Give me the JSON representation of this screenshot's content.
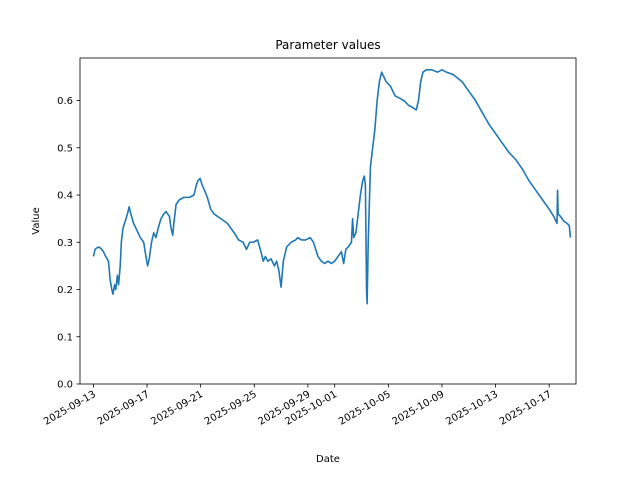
{
  "chart_data": {
    "type": "line",
    "title": "Parameter values",
    "xlabel": "Date",
    "ylabel": "Value",
    "x_axis_type": "date",
    "xlim": [
      "2025-09-12T00:00",
      "2025-10-19T00:00"
    ],
    "ylim": [
      0,
      0.69
    ],
    "grid": false,
    "legend": "none",
    "x_ticks": [
      "2025-09-13",
      "2025-09-17",
      "2025-09-21",
      "2025-09-25",
      "2025-09-29",
      "2025-10-01",
      "2025-10-05",
      "2025-10-09",
      "2025-10-13",
      "2025-10-17"
    ],
    "y_ticks": [
      "0.0",
      "0.1",
      "0.2",
      "0.3",
      "0.4",
      "0.5",
      "0.6"
    ],
    "series": [
      {
        "color": "#1f77b4",
        "points": [
          [
            "2025-09-13T00:00",
            0.27
          ],
          [
            "2025-09-13T03:00",
            0.285
          ],
          [
            "2025-09-13T06:00",
            0.288
          ],
          [
            "2025-09-13T10:00",
            0.29
          ],
          [
            "2025-09-13T14:00",
            0.286
          ],
          [
            "2025-09-13T18:00",
            0.28
          ],
          [
            "2025-09-13T22:00",
            0.27
          ],
          [
            "2025-09-14T03:00",
            0.26
          ],
          [
            "2025-09-14T06:00",
            0.22
          ],
          [
            "2025-09-14T09:00",
            0.2
          ],
          [
            "2025-09-14T11:00",
            0.19
          ],
          [
            "2025-09-14T14:00",
            0.21
          ],
          [
            "2025-09-14T16:00",
            0.2
          ],
          [
            "2025-09-14T19:00",
            0.23
          ],
          [
            "2025-09-14T21:00",
            0.21
          ],
          [
            "2025-09-15T00:00",
            0.25
          ],
          [
            "2025-09-15T02:00",
            0.3
          ],
          [
            "2025-09-15T05:00",
            0.33
          ],
          [
            "2025-09-15T09:00",
            0.345
          ],
          [
            "2025-09-15T13:00",
            0.36
          ],
          [
            "2025-09-15T16:00",
            0.375
          ],
          [
            "2025-09-15T19:00",
            0.36
          ],
          [
            "2025-09-16T00:00",
            0.34
          ],
          [
            "2025-09-16T06:00",
            0.325
          ],
          [
            "2025-09-16T12:00",
            0.31
          ],
          [
            "2025-09-16T18:00",
            0.3
          ],
          [
            "2025-09-16T22:00",
            0.27
          ],
          [
            "2025-09-17T01:00",
            0.25
          ],
          [
            "2025-09-17T04:00",
            0.265
          ],
          [
            "2025-09-17T08:00",
            0.3
          ],
          [
            "2025-09-17T12:00",
            0.32
          ],
          [
            "2025-09-17T16:00",
            0.31
          ],
          [
            "2025-09-17T20:00",
            0.33
          ],
          [
            "2025-09-18T01:00",
            0.35
          ],
          [
            "2025-09-18T06:00",
            0.36
          ],
          [
            "2025-09-18T10:00",
            0.365
          ],
          [
            "2025-09-18T16:00",
            0.355
          ],
          [
            "2025-09-18T19:00",
            0.33
          ],
          [
            "2025-09-18T22:00",
            0.315
          ],
          [
            "2025-09-19T00:00",
            0.34
          ],
          [
            "2025-09-19T04:00",
            0.38
          ],
          [
            "2025-09-19T10:00",
            0.39
          ],
          [
            "2025-09-19T18:00",
            0.395
          ],
          [
            "2025-09-20T04:00",
            0.395
          ],
          [
            "2025-09-20T12:00",
            0.4
          ],
          [
            "2025-09-20T16:00",
            0.42
          ],
          [
            "2025-09-20T19:00",
            0.43
          ],
          [
            "2025-09-20T23:00",
            0.435
          ],
          [
            "2025-09-21T03:00",
            0.42
          ],
          [
            "2025-09-21T07:00",
            0.41
          ],
          [
            "2025-09-21T12:00",
            0.395
          ],
          [
            "2025-09-21T18:00",
            0.37
          ],
          [
            "2025-09-22T00:00",
            0.36
          ],
          [
            "2025-09-22T12:00",
            0.35
          ],
          [
            "2025-09-23T00:00",
            0.34
          ],
          [
            "2025-09-23T12:00",
            0.32
          ],
          [
            "2025-09-23T20:00",
            0.305
          ],
          [
            "2025-09-24T04:00",
            0.3
          ],
          [
            "2025-09-24T10:00",
            0.285
          ],
          [
            "2025-09-24T16:00",
            0.3
          ],
          [
            "2025-09-24T22:00",
            0.3
          ],
          [
            "2025-09-25T06:00",
            0.305
          ],
          [
            "2025-09-25T12:00",
            0.28
          ],
          [
            "2025-09-25T16:00",
            0.26
          ],
          [
            "2025-09-25T20:00",
            0.27
          ],
          [
            "2025-09-26T00:00",
            0.26
          ],
          [
            "2025-09-26T06:00",
            0.265
          ],
          [
            "2025-09-26T12:00",
            0.25
          ],
          [
            "2025-09-26T16:00",
            0.26
          ],
          [
            "2025-09-26T20:00",
            0.24
          ],
          [
            "2025-09-27T00:00",
            0.205
          ],
          [
            "2025-09-27T04:00",
            0.26
          ],
          [
            "2025-09-27T10:00",
            0.29
          ],
          [
            "2025-09-27T18:00",
            0.3
          ],
          [
            "2025-09-28T02:00",
            0.305
          ],
          [
            "2025-09-28T06:00",
            0.31
          ],
          [
            "2025-09-28T12:00",
            0.305
          ],
          [
            "2025-09-28T20:00",
            0.305
          ],
          [
            "2025-09-29T04:00",
            0.31
          ],
          [
            "2025-09-29T10:00",
            0.3
          ],
          [
            "2025-09-29T14:00",
            0.285
          ],
          [
            "2025-09-29T18:00",
            0.27
          ],
          [
            "2025-09-30T00:00",
            0.26
          ],
          [
            "2025-09-30T06:00",
            0.255
          ],
          [
            "2025-09-30T12:00",
            0.26
          ],
          [
            "2025-09-30T18:00",
            0.255
          ],
          [
            "2025-10-01T00:00",
            0.26
          ],
          [
            "2025-10-01T06:00",
            0.27
          ],
          [
            "2025-10-01T12:00",
            0.28
          ],
          [
            "2025-10-01T16:00",
            0.255
          ],
          [
            "2025-10-01T20:00",
            0.285
          ],
          [
            "2025-10-02T00:00",
            0.29
          ],
          [
            "2025-10-02T06:00",
            0.3
          ],
          [
            "2025-10-02T08:00",
            0.35
          ],
          [
            "2025-10-02T10:00",
            0.31
          ],
          [
            "2025-10-02T14:00",
            0.32
          ],
          [
            "2025-10-02T18:00",
            0.36
          ],
          [
            "2025-10-02T22:00",
            0.4
          ],
          [
            "2025-10-03T02:00",
            0.43
          ],
          [
            "2025-10-03T05:00",
            0.44
          ],
          [
            "2025-10-03T07:00",
            0.42
          ],
          [
            "2025-10-03T09:00",
            0.2
          ],
          [
            "2025-10-03T10:00",
            0.17
          ],
          [
            "2025-10-03T12:00",
            0.3
          ],
          [
            "2025-10-03T16:00",
            0.46
          ],
          [
            "2025-10-03T20:00",
            0.5
          ],
          [
            "2025-10-04T00:00",
            0.54
          ],
          [
            "2025-10-04T04:00",
            0.6
          ],
          [
            "2025-10-04T08:00",
            0.64
          ],
          [
            "2025-10-04T12:00",
            0.66
          ],
          [
            "2025-10-04T16:00",
            0.65
          ],
          [
            "2025-10-04T20:00",
            0.64
          ],
          [
            "2025-10-05T04:00",
            0.63
          ],
          [
            "2025-10-05T12:00",
            0.61
          ],
          [
            "2025-10-05T20:00",
            0.605
          ],
          [
            "2025-10-06T04:00",
            0.6
          ],
          [
            "2025-10-06T12:00",
            0.59
          ],
          [
            "2025-10-06T20:00",
            0.585
          ],
          [
            "2025-10-07T02:00",
            0.58
          ],
          [
            "2025-10-07T06:00",
            0.6
          ],
          [
            "2025-10-07T10:00",
            0.64
          ],
          [
            "2025-10-07T14:00",
            0.66
          ],
          [
            "2025-10-07T20:00",
            0.665
          ],
          [
            "2025-10-08T06:00",
            0.665
          ],
          [
            "2025-10-08T16:00",
            0.66
          ],
          [
            "2025-10-09T00:00",
            0.665
          ],
          [
            "2025-10-09T08:00",
            0.66
          ],
          [
            "2025-10-09T20:00",
            0.655
          ],
          [
            "2025-10-10T12:00",
            0.64
          ],
          [
            "2025-10-11T00:00",
            0.62
          ],
          [
            "2025-10-11T12:00",
            0.6
          ],
          [
            "2025-10-12T00:00",
            0.575
          ],
          [
            "2025-10-12T12:00",
            0.55
          ],
          [
            "2025-10-13T00:00",
            0.53
          ],
          [
            "2025-10-13T12:00",
            0.51
          ],
          [
            "2025-10-14T00:00",
            0.49
          ],
          [
            "2025-10-14T12:00",
            0.475
          ],
          [
            "2025-10-15T00:00",
            0.455
          ],
          [
            "2025-10-15T12:00",
            0.43
          ],
          [
            "2025-10-16T00:00",
            0.41
          ],
          [
            "2025-10-16T12:00",
            0.39
          ],
          [
            "2025-10-17T00:00",
            0.37
          ],
          [
            "2025-10-17T08:00",
            0.355
          ],
          [
            "2025-10-17T12:00",
            0.345
          ],
          [
            "2025-10-17T14:00",
            0.34
          ],
          [
            "2025-10-17T15:00",
            0.41
          ],
          [
            "2025-10-17T16:00",
            0.36
          ],
          [
            "2025-10-17T20:00",
            0.355
          ],
          [
            "2025-10-18T02:00",
            0.345
          ],
          [
            "2025-10-18T08:00",
            0.34
          ],
          [
            "2025-10-18T12:00",
            0.335
          ],
          [
            "2025-10-18T14:00",
            0.31
          ]
        ]
      }
    ]
  }
}
